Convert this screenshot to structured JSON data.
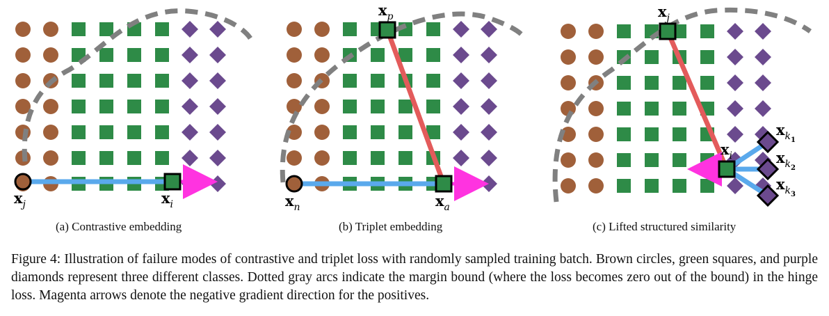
{
  "panels": [
    {
      "subcaption": "(a) Contrastive embedding",
      "points": [
        {
          "label_main": "x",
          "label_sub": "j"
        },
        {
          "label_main": "x",
          "label_sub": "i"
        }
      ]
    },
    {
      "subcaption": "(b) Triplet embedding",
      "points": [
        {
          "label_main": "x",
          "label_sub": "p"
        },
        {
          "label_main": "x",
          "label_sub": "n"
        },
        {
          "label_main": "x",
          "label_sub": "a"
        }
      ]
    },
    {
      "subcaption": "(c) Lifted structured similarity",
      "points": [
        {
          "label_main": "x",
          "label_sub": "j"
        },
        {
          "label_main": "x",
          "label_sub": "i"
        },
        {
          "label_main": "x",
          "label_sub": "k1"
        },
        {
          "label_main": "x",
          "label_sub": "k2"
        },
        {
          "label_main": "x",
          "label_sub": "k3"
        }
      ]
    }
  ],
  "caption": "Figure 4: Illustration of failure modes of contrastive and triplet loss with randomly sampled training batch. Brown circles, green squares, and purple diamonds represent three different classes. Dotted gray arcs indicate the margin bound (where the loss becomes zero out of the bound) in the hinge loss. Magenta arrows denote the negative gradient direction for the positives.",
  "colors": {
    "brown": "#a0603a",
    "green": "#2e8b47",
    "purple": "#6b4a8e",
    "gray_arc": "#808080",
    "blue_line": "#5aa9ec",
    "red_line": "#e35b5b",
    "magenta": "#ff33e0"
  }
}
